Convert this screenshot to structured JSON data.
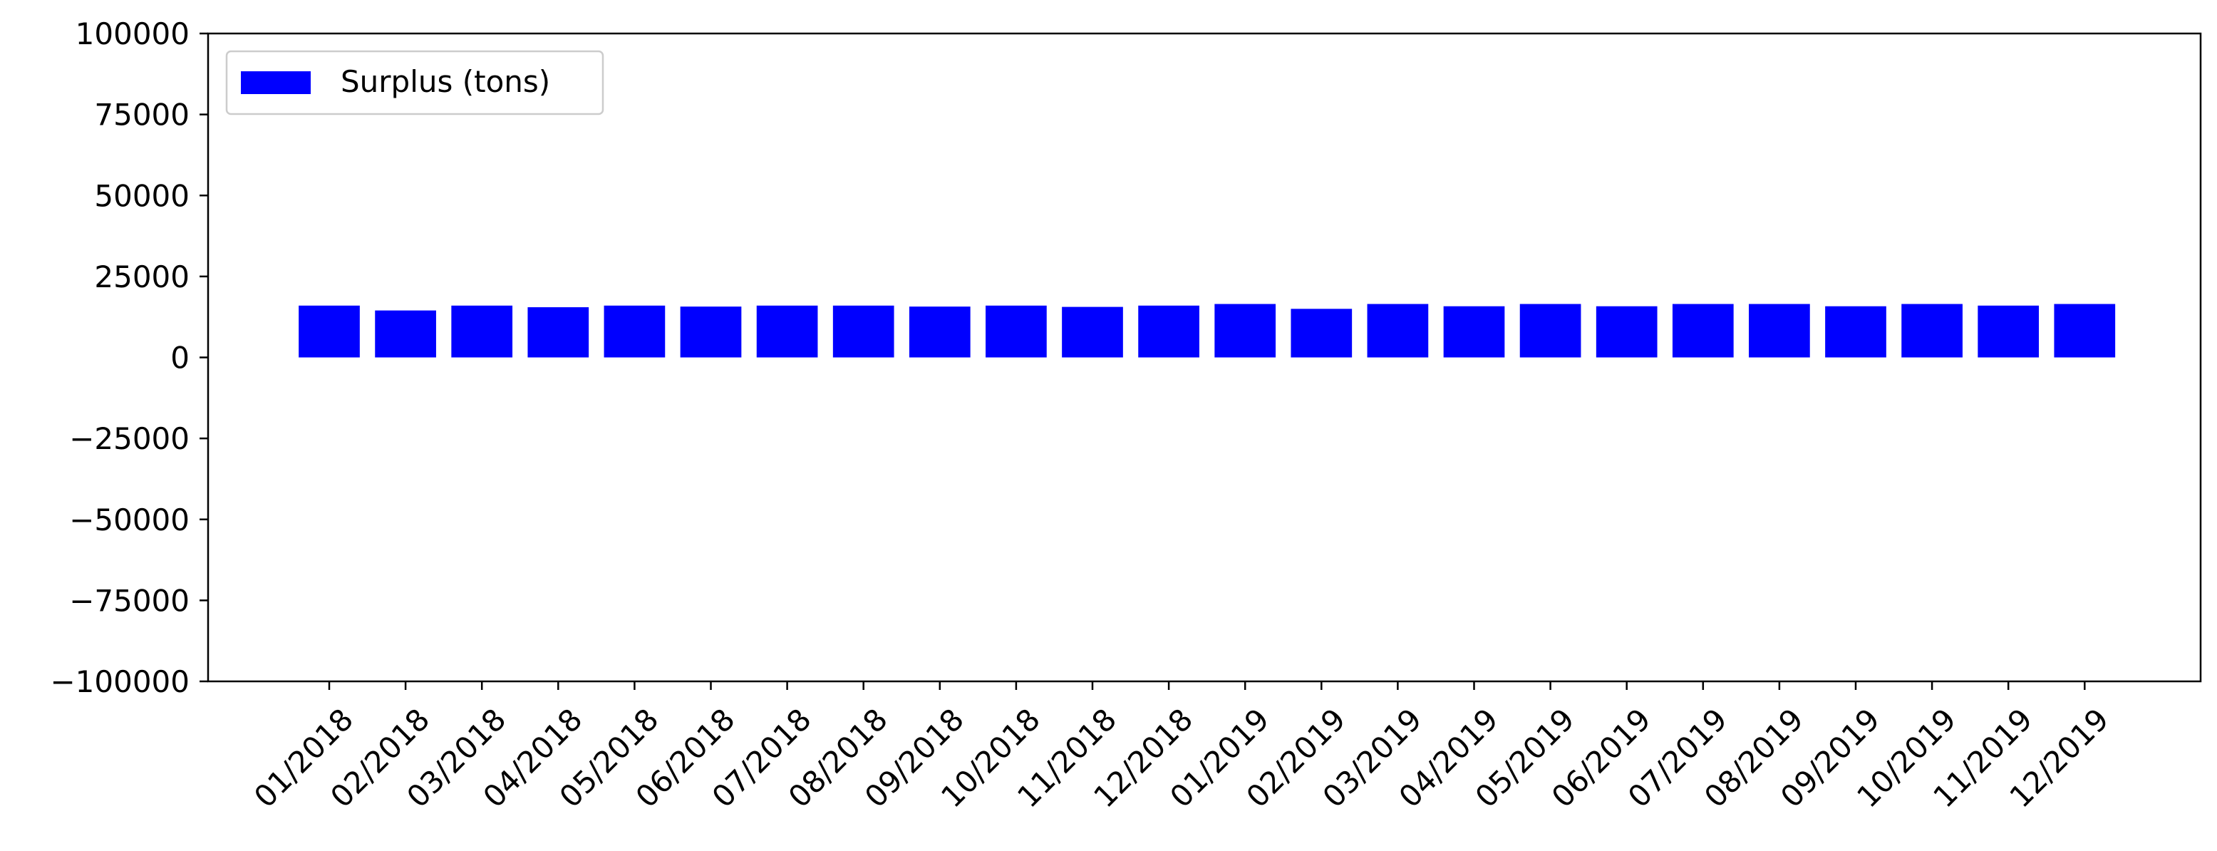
{
  "chart_data": {
    "type": "bar",
    "categories": [
      "01/2018",
      "02/2018",
      "03/2018",
      "04/2018",
      "05/2018",
      "06/2018",
      "07/2018",
      "08/2018",
      "09/2018",
      "10/2018",
      "11/2018",
      "12/2018",
      "01/2019",
      "02/2019",
      "03/2019",
      "04/2019",
      "05/2019",
      "06/2019",
      "07/2019",
      "08/2019",
      "09/2019",
      "10/2019",
      "11/2019",
      "12/2019"
    ],
    "series": [
      {
        "name": "Surplus (tons)",
        "color": "#0000ff",
        "values": [
          16000,
          14500,
          16000,
          15500,
          16000,
          15700,
          16000,
          16000,
          15700,
          16000,
          15600,
          16000,
          16500,
          15000,
          16500,
          15800,
          16500,
          15800,
          16500,
          16500,
          15800,
          16500,
          16000,
          16500
        ]
      }
    ],
    "yticks": [
      "100000",
      "75000",
      "50000",
      "25000",
      "0",
      "−25000",
      "−50000",
      "−75000",
      "−100000"
    ],
    "ylim": [
      -100000,
      100000
    ],
    "grid": false,
    "legend_position": "upper-left"
  }
}
